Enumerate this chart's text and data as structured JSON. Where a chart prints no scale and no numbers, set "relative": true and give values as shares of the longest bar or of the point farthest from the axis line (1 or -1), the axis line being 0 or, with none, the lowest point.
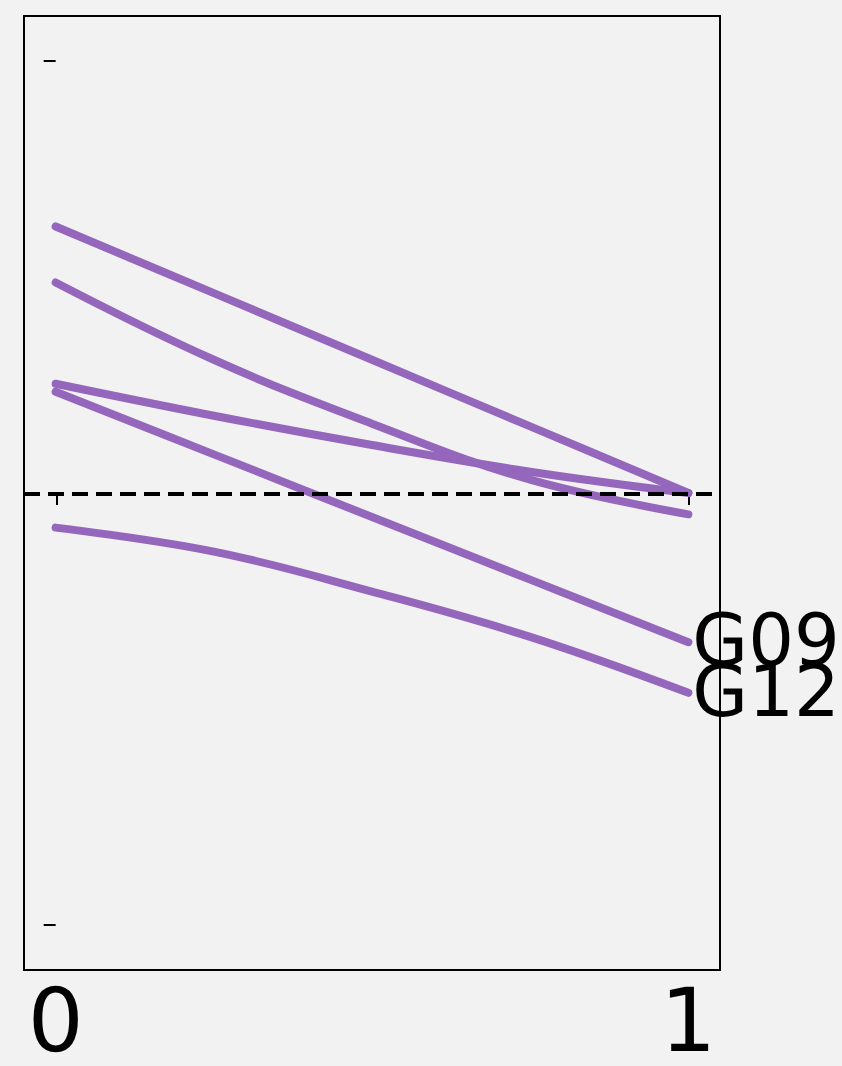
{
  "chart_data": {
    "type": "line",
    "relative": true,
    "x": [
      0,
      0.25,
      0.5,
      0.75,
      1
    ],
    "xlim": [
      -0.05,
      1.05
    ],
    "xticks": [
      0,
      1
    ],
    "tick_labels": "x",
    "grid": false,
    "legend": false,
    "marker": "none",
    "line_style": "solid",
    "series": [
      {
        "color": "#9467bd",
        "values": [
          1,
          0.75,
          0.5,
          0.25,
          0
        ]
      },
      {
        "color": "#9467bd",
        "values": [
          0.79,
          0.5,
          0.26,
          0.05,
          -0.08
        ]
      },
      {
        "color": "#9467bd",
        "values": [
          0.41,
          0.29,
          0.18,
          0.08,
          0
        ]
      },
      {
        "name": "G09",
        "color": "#9467bd",
        "values": [
          0.38,
          0.145,
          -0.09,
          -0.325,
          -0.56
        ]
      },
      {
        "name": "G12",
        "color": "#9467bd",
        "values": [
          -0.13,
          -0.22,
          -0.37,
          -0.54,
          -0.75
        ]
      }
    ],
    "ref_lines": [
      {
        "axis": "y",
        "value": 0,
        "color": "#000000",
        "line_style": "dashed"
      }
    ]
  }
}
